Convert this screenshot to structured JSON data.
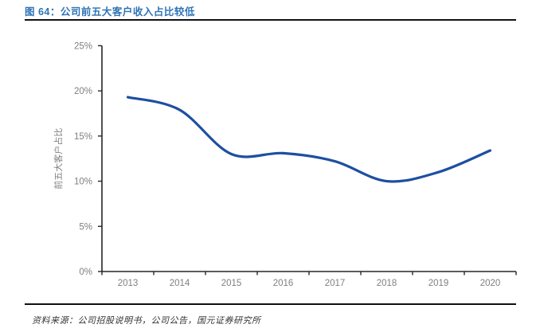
{
  "header": {
    "title": "图 64：公司前五大客户收入占比较低"
  },
  "footer": {
    "source": "资料来源：公司招股说明书，公司公告，国元证券研究所"
  },
  "chart_data": {
    "type": "line",
    "title": "图 64：公司前五大客户收入占比较低",
    "categories": [
      "2013",
      "2014",
      "2015",
      "2016",
      "2017",
      "2018",
      "2019",
      "2020"
    ],
    "series": [
      {
        "name": "前五大客户占比",
        "values": [
          19.3,
          17.9,
          13.0,
          13.1,
          12.2,
          10.0,
          11.0,
          13.4
        ]
      }
    ],
    "xlabel": "",
    "ylabel": "前五大客户占比",
    "ylim": [
      0,
      25
    ],
    "ytick_step": 5,
    "ytick_labels": [
      "0%",
      "5%",
      "10%",
      "15%",
      "20%",
      "25%"
    ],
    "grid": false,
    "legend_position": "none",
    "line_color": "#1d4fa0",
    "axis_color": "#262626",
    "tick_label_color": "#7f7f7f",
    "title_color": "#2e74b5"
  }
}
